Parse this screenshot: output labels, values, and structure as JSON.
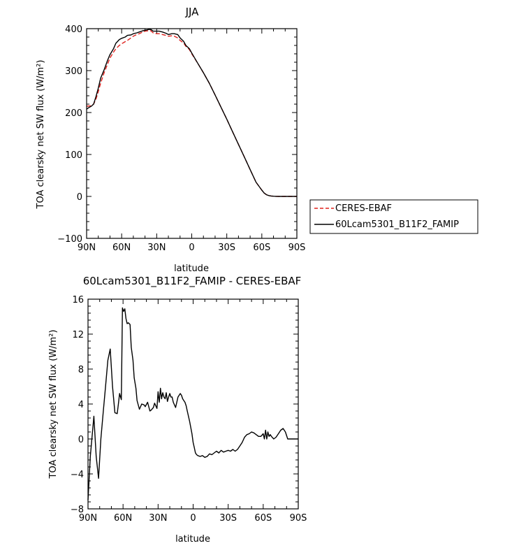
{
  "chart_data": [
    {
      "type": "line",
      "title": "JJA",
      "xlabel": "latitude",
      "ylabel": "TOA clearsky net SW flux (W/m²)",
      "xlim": [
        -90,
        90
      ],
      "ylim": [
        -100,
        400
      ],
      "x_ticks": [
        {
          "value": -90,
          "label": "90N"
        },
        {
          "value": -60,
          "label": "60N"
        },
        {
          "value": -30,
          "label": "30N"
        },
        {
          "value": 0,
          "label": "0"
        },
        {
          "value": 30,
          "label": "30S"
        },
        {
          "value": 60,
          "label": "60S"
        },
        {
          "value": 90,
          "label": "90S"
        }
      ],
      "y_ticks": [
        -100,
        0,
        100,
        200,
        300,
        400
      ],
      "y_tick_labels": [
        "−100",
        "0",
        "100",
        "200",
        "300",
        "400"
      ],
      "grid": false,
      "legend_position": "outside-right",
      "series": [
        {
          "name": "CERES-EBAF",
          "color": "#e0201c",
          "style": "dashed",
          "x": [
            -90,
            -87,
            -84,
            -82,
            -80,
            -78,
            -75,
            -72,
            -70,
            -67,
            -65,
            -62,
            -60,
            -57,
            -55,
            -52,
            -50,
            -47,
            -45,
            -42,
            -40,
            -37,
            -35,
            -33,
            -30,
            -28,
            -25,
            -22,
            -20,
            -17,
            -15,
            -12,
            -10,
            -7,
            -5,
            -2,
            0,
            5,
            10,
            15,
            20,
            25,
            30,
            35,
            40,
            45,
            50,
            55,
            60,
            62,
            64,
            66,
            68,
            70,
            72,
            75,
            80,
            85,
            90
          ],
          "y": [
            215,
            216,
            220,
            232,
            250,
            270,
            295,
            316,
            330,
            344,
            352,
            360,
            364,
            369,
            372,
            378,
            382,
            386,
            388,
            392,
            394,
            395,
            395,
            390,
            388,
            388,
            386,
            384,
            382,
            383,
            382,
            378,
            372,
            366,
            358,
            350,
            340,
            318,
            295,
            270,
            242,
            213,
            184,
            154,
            124,
            94,
            64,
            34,
            15,
            8,
            4,
            2,
            1,
            0.5,
            0.2,
            0,
            0,
            0,
            0
          ]
        },
        {
          "name": "60Lcam5301_B11F2_FAMIP",
          "color": "#000000",
          "style": "solid",
          "x": [
            -90,
            -88,
            -86,
            -84,
            -82,
            -80,
            -78,
            -75,
            -72,
            -70,
            -67,
            -65,
            -62,
            -60,
            -57,
            -55,
            -52,
            -50,
            -47,
            -45,
            -42,
            -40,
            -37,
            -35,
            -33,
            -30,
            -28,
            -25,
            -22,
            -20,
            -17,
            -15,
            -12,
            -10,
            -7,
            -5,
            -2,
            0,
            5,
            10,
            15,
            20,
            25,
            30,
            35,
            40,
            45,
            50,
            55,
            60,
            62,
            64,
            66,
            68,
            70,
            72,
            75,
            80,
            85,
            90
          ],
          "y": [
            208,
            212,
            215,
            220,
            238,
            258,
            282,
            302,
            325,
            338,
            352,
            365,
            374,
            377,
            380,
            384,
            385,
            388,
            390,
            392,
            395,
            396,
            398,
            398,
            394,
            394,
            394,
            392,
            389,
            386,
            388,
            388,
            386,
            378,
            370,
            360,
            352,
            342,
            318,
            295,
            270,
            242,
            213,
            184,
            154,
            124,
            94,
            64,
            34,
            15,
            8,
            4,
            2,
            1,
            0.5,
            0.2,
            0,
            0,
            0,
            0
          ]
        }
      ]
    },
    {
      "type": "line",
      "title": "60Lcam5301_B11F2_FAMIP - CERES-EBAF",
      "xlabel": "latitude",
      "ylabel": "TOA clearsky net SW flux (W/m²)",
      "xlim": [
        -90,
        90
      ],
      "ylim": [
        -8,
        16
      ],
      "x_ticks": [
        {
          "value": -90,
          "label": "90N"
        },
        {
          "value": -60,
          "label": "60N"
        },
        {
          "value": -30,
          "label": "30N"
        },
        {
          "value": 0,
          "label": "0"
        },
        {
          "value": 30,
          "label": "30S"
        },
        {
          "value": 60,
          "label": "60S"
        },
        {
          "value": 90,
          "label": "90S"
        }
      ],
      "y_ticks": [
        -8,
        -4,
        0,
        4,
        8,
        12,
        16
      ],
      "y_tick_labels": [
        "−8",
        "−4",
        "0",
        "4",
        "8",
        "12",
        "16"
      ],
      "grid": false,
      "series": [
        {
          "name": "",
          "color": "#000000",
          "style": "solid",
          "x": [
            -90,
            -88,
            -85,
            -83,
            -81,
            -79,
            -77,
            -75,
            -73,
            -71,
            -69,
            -67,
            -65,
            -64,
            -63,
            -61.5,
            -60.5,
            -59.5,
            -58.5,
            -57.5,
            -56.5,
            -55.5,
            -54,
            -53,
            -51.5,
            -50.5,
            -49,
            -48,
            -46,
            -44,
            -42,
            -41,
            -39,
            -37,
            -36,
            -34,
            -33,
            -31,
            -30,
            -29,
            -28,
            -27,
            -26,
            -25,
            -24,
            -23,
            -22,
            -21,
            -20,
            -19,
            -18,
            -17,
            -15,
            -13,
            -11,
            -10,
            -9,
            -8,
            -7,
            -6,
            -5,
            -3,
            -1,
            0,
            1,
            2,
            3,
            4,
            6,
            8,
            10,
            12,
            14,
            16,
            18,
            20,
            22,
            24,
            26,
            28,
            30,
            32,
            34,
            36,
            38,
            40,
            42,
            44,
            46,
            48,
            50,
            52,
            54,
            56,
            58,
            60,
            61,
            62,
            63,
            64,
            65,
            66,
            67,
            69,
            71,
            73,
            75,
            77,
            79,
            81,
            84,
            87,
            90
          ],
          "y": [
            -7,
            -2,
            2.6,
            -2,
            -4.5,
            0,
            3,
            6,
            9,
            10.3,
            6,
            3,
            2.9,
            4,
            5.2,
            4.5,
            15,
            14.6,
            14.9,
            13.8,
            13.2,
            13.3,
            13.1,
            10.5,
            9,
            7,
            5.8,
            4.4,
            3.4,
            4,
            3.9,
            3.7,
            4.2,
            3.2,
            3.3,
            3.6,
            4.1,
            3.5,
            5.4,
            4.2,
            5.8,
            4.6,
            5.3,
            4.8,
            4.6,
            5.3,
            4.3,
            4.8,
            5.2,
            4.8,
            4.8,
            4.2,
            3.6,
            4.8,
            5.2,
            5,
            4.6,
            4.4,
            4.2,
            3.8,
            3.2,
            2,
            0.6,
            -0.4,
            -1,
            -1.6,
            -1.8,
            -1.9,
            -2,
            -1.9,
            -2.1,
            -2,
            -1.7,
            -1.8,
            -1.6,
            -1.4,
            -1.6,
            -1.3,
            -1.5,
            -1.4,
            -1.3,
            -1.4,
            -1.2,
            -1.4,
            -1.2,
            -0.8,
            -0.4,
            0.2,
            0.5,
            0.6,
            0.8,
            0.7,
            0.5,
            0.3,
            0.3,
            0.6,
            0,
            1,
            0,
            0.8,
            0.3,
            0.5,
            0.3,
            0,
            0.2,
            0.6,
            1,
            1.2,
            0.8,
            0,
            0,
            0,
            0
          ]
        }
      ]
    }
  ]
}
